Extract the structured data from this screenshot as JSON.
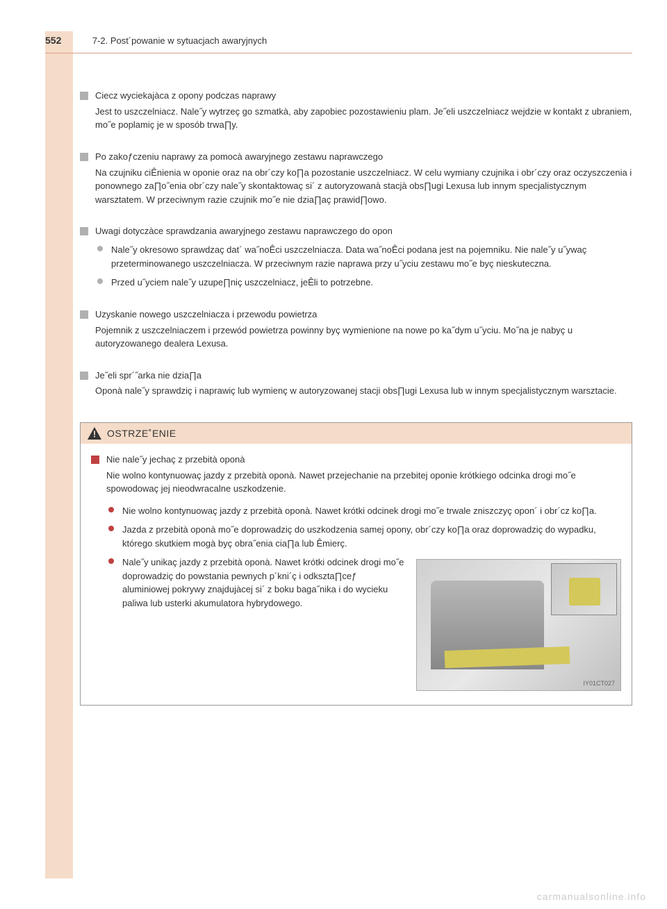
{
  "header": {
    "page_number": "552",
    "breadcrumb": "7-2. Post´powanie w sytuacjach awaryjnych"
  },
  "sections": [
    {
      "title": "Ciecz wyciekajàca z opony podczas naprawy",
      "body": "Jest to uszczelniacz. Nale˝y wytrzeç go szmatkà, aby zapobiec pozostawieniu plam. Je˝eli uszczelniacz wejdzie w kontakt z ubraniem, mo˝e poplamiç je w sposób trwa∏y."
    },
    {
      "title": "Po zakoƒczeniu naprawy za pomocà awaryjnego zestawu naprawczego",
      "body": "Na czujniku ciÊnienia w oponie oraz na obr´czy ko∏a pozostanie uszczelniacz. W celu wymiany czujnika i obr´czy oraz oczyszczenia i ponownego za∏o˝enia obr´czy nale˝y skontaktowaç si´ z autoryzowanà stacjà obs∏ugi Lexusa lub innym specjalistycznym warsztatem. W przeciwnym razie czujnik mo˝e nie dzia∏aç prawid∏owo."
    },
    {
      "title": "Uwagi dotyczàce sprawdzania awaryjnego zestawu naprawczego do opon",
      "bullets": [
        "Nale˝y okresowo sprawdzaç dat´ wa˝noÊci uszczelniacza. Data wa˝noÊci podana jest na pojemniku. Nie nale˝y u˝ywaç przeterminowanego uszczelniacza. W przeciwnym razie naprawa przy u˝yciu zestawu mo˝e byç nieskuteczna.",
        "Przed u˝yciem nale˝y uzupe∏niç uszczelniacz, jeÊli to potrzebne."
      ]
    },
    {
      "title": "Uzyskanie nowego uszczelniacza i przewodu powietrza",
      "body": "Pojemnik z uszczelniaczem i przewód powietrza powinny byç wymienione na nowe po ka˝dym u˝yciu. Mo˝na je nabyç u autoryzowanego dealera Lexusa."
    },
    {
      "title": "Je˝eli spr´˝arka nie dzia∏a",
      "body": "Oponà nale˝y sprawdziç i naprawiç lub wymienç w autoryzowanej stacji obs∏ugi Lexusa lub w innym specjalistycznym warsztacie."
    }
  ],
  "warning": {
    "header_label": "OSTRZE˚ENIE",
    "section_title": "Nie nale˝y jechaç z przebità oponà",
    "section_body": "Nie wolno kontynuowaç jazdy z przebità oponà. Nawet przejechanie na przebitej oponie krótkiego odcinka drogi mo˝e spowodowaç jej nieodwracalne uszkodzenie.",
    "bullets": [
      "Nie wolno kontynuowaç jazdy z przebità oponà. Nawet krótki odcinek drogi mo˝e trwale zniszczyç opon´ i obr´cz ko∏a.",
      "Jazda z przebità oponà mo˝e doprowadziç do uszkodzenia samej opony, obr´czy ko∏a oraz doprowadziç do wypadku, którego skutkiem mogà byç obra˝enia cia∏a lub Êmierç.",
      "Nale˝y unikaç jazdy z przebità oponà. Nawet krótki odcinek drogi mo˝e doprowadziç do powstania pewnych p´kni´ç i odkszta∏ceƒ aluminiowej pokrywy znajdujàcej si´ z boku baga˝nika i do wycieku paliwa lub usterki akumulatora hybrydowego."
    ],
    "image_label": "IY01CT027"
  },
  "watermark": "carmanualsonline.info",
  "colors": {
    "accent_bg": "#f5dcc9",
    "accent_border": "#d4a08a",
    "marker_gray": "#b0b0b0",
    "marker_red": "#c04040",
    "text": "#333333",
    "highlight_yellow": "#d4c85a"
  }
}
